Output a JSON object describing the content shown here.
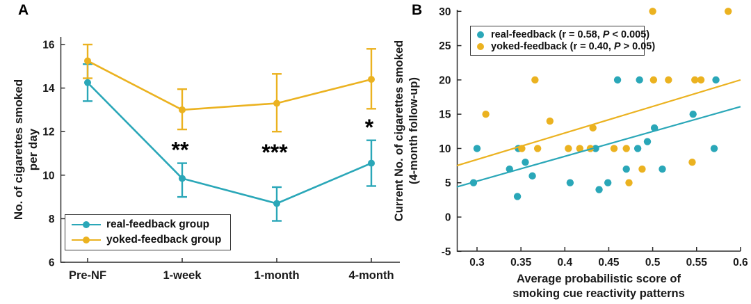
{
  "figure": {
    "panel_a_label": "A",
    "panel_b_label": "B"
  },
  "colors": {
    "real_feedback": "#2AA7B8",
    "yoked_feedback": "#EBB220",
    "axis": "#2b2b2b",
    "text": "#1a1a1a",
    "annotation": "#000000"
  },
  "chart_data": [
    {
      "id": "panel_a",
      "type": "line",
      "title": "",
      "categories": [
        "Pre-NF",
        "1-week",
        "1-month",
        "4-month"
      ],
      "ylabel_lines": [
        "No. of cigarettes smoked",
        "per day"
      ],
      "ylim": [
        6,
        16.5
      ],
      "ytick_labels": [
        "6",
        "8",
        "10",
        "12",
        "14",
        "16"
      ],
      "grid": false,
      "legend_position": "bottom-left",
      "series": [
        {
          "name": "real-feedback group",
          "color_key": "real_feedback",
          "values": [
            14.25,
            9.85,
            8.7,
            10.55
          ],
          "err_low": [
            13.4,
            9.0,
            7.9,
            9.5
          ],
          "err_high": [
            15.1,
            10.55,
            9.45,
            11.6
          ]
        },
        {
          "name": "yoked-feedback group",
          "color_key": "yoked_feedback",
          "values": [
            15.25,
            13.0,
            13.3,
            14.4
          ],
          "err_low": [
            14.45,
            12.1,
            12.0,
            13.05
          ],
          "err_high": [
            16.0,
            13.95,
            14.65,
            15.8
          ]
        }
      ],
      "significance_annotations": [
        {
          "text": "**",
          "category_index": 1,
          "y": 11.25
        },
        {
          "text": "***",
          "category_index": 2,
          "y": 11.15
        },
        {
          "text": "*",
          "category_index": 3,
          "y": 12.3
        }
      ]
    },
    {
      "id": "panel_b",
      "type": "scatter",
      "title": "",
      "xlabel_lines": [
        "Average probabilistic score of",
        "smoking cue reactivity patterns"
      ],
      "ylabel_lines": [
        "Current No. of cigarettes smoked",
        "(4-month follow-up)"
      ],
      "xlim": [
        0.277,
        0.6
      ],
      "ylim": [
        -5,
        30.5
      ],
      "xtick_labels": [
        "0.3",
        "0.35",
        "0.4",
        "0.45",
        "0.5",
        "0.55",
        "0.6"
      ],
      "ytick_labels": [
        "-5",
        "0",
        "5",
        "10",
        "15",
        "20",
        "25",
        "30"
      ],
      "grid": false,
      "legend_position": "top-left",
      "series": [
        {
          "name_prefix": "real-feedback (r = 0.58, ",
          "p_symbol": "P",
          "name_suffix": " < 0.005)",
          "color_key": "real_feedback",
          "points": [
            [
              0.296,
              5
            ],
            [
              0.3,
              10
            ],
            [
              0.337,
              7
            ],
            [
              0.346,
              3
            ],
            [
              0.347,
              10
            ],
            [
              0.355,
              8
            ],
            [
              0.363,
              6
            ],
            [
              0.406,
              5
            ],
            [
              0.435,
              10
            ],
            [
              0.439,
              4
            ],
            [
              0.449,
              5
            ],
            [
              0.46,
              20
            ],
            [
              0.47,
              7
            ],
            [
              0.483,
              10
            ],
            [
              0.485,
              20
            ],
            [
              0.494,
              11
            ],
            [
              0.502,
              13
            ],
            [
              0.511,
              7
            ],
            [
              0.546,
              15
            ],
            [
              0.57,
              10
            ],
            [
              0.572,
              20
            ]
          ],
          "fit_line": {
            "x1": 0.277,
            "y1": 4.4,
            "x2": 0.6,
            "y2": 16.1
          }
        },
        {
          "name_prefix": "yoked-feedback (r = 0.40, ",
          "p_symbol": "P",
          "name_suffix": " > 0.05)",
          "color_key": "yoked_feedback",
          "points": [
            [
              0.31,
              15
            ],
            [
              0.351,
              10
            ],
            [
              0.366,
              20
            ],
            [
              0.369,
              10
            ],
            [
              0.383,
              14
            ],
            [
              0.404,
              10
            ],
            [
              0.417,
              10
            ],
            [
              0.429,
              10
            ],
            [
              0.432,
              13
            ],
            [
              0.456,
              10
            ],
            [
              0.47,
              10
            ],
            [
              0.473,
              5
            ],
            [
              0.488,
              7
            ],
            [
              0.5,
              30
            ],
            [
              0.501,
              20
            ],
            [
              0.518,
              20
            ],
            [
              0.545,
              8
            ],
            [
              0.548,
              20
            ],
            [
              0.555,
              20
            ],
            [
              0.586,
              30
            ]
          ],
          "fit_line": {
            "x1": 0.277,
            "y1": 7.5,
            "x2": 0.6,
            "y2": 20.0
          }
        }
      ]
    }
  ]
}
